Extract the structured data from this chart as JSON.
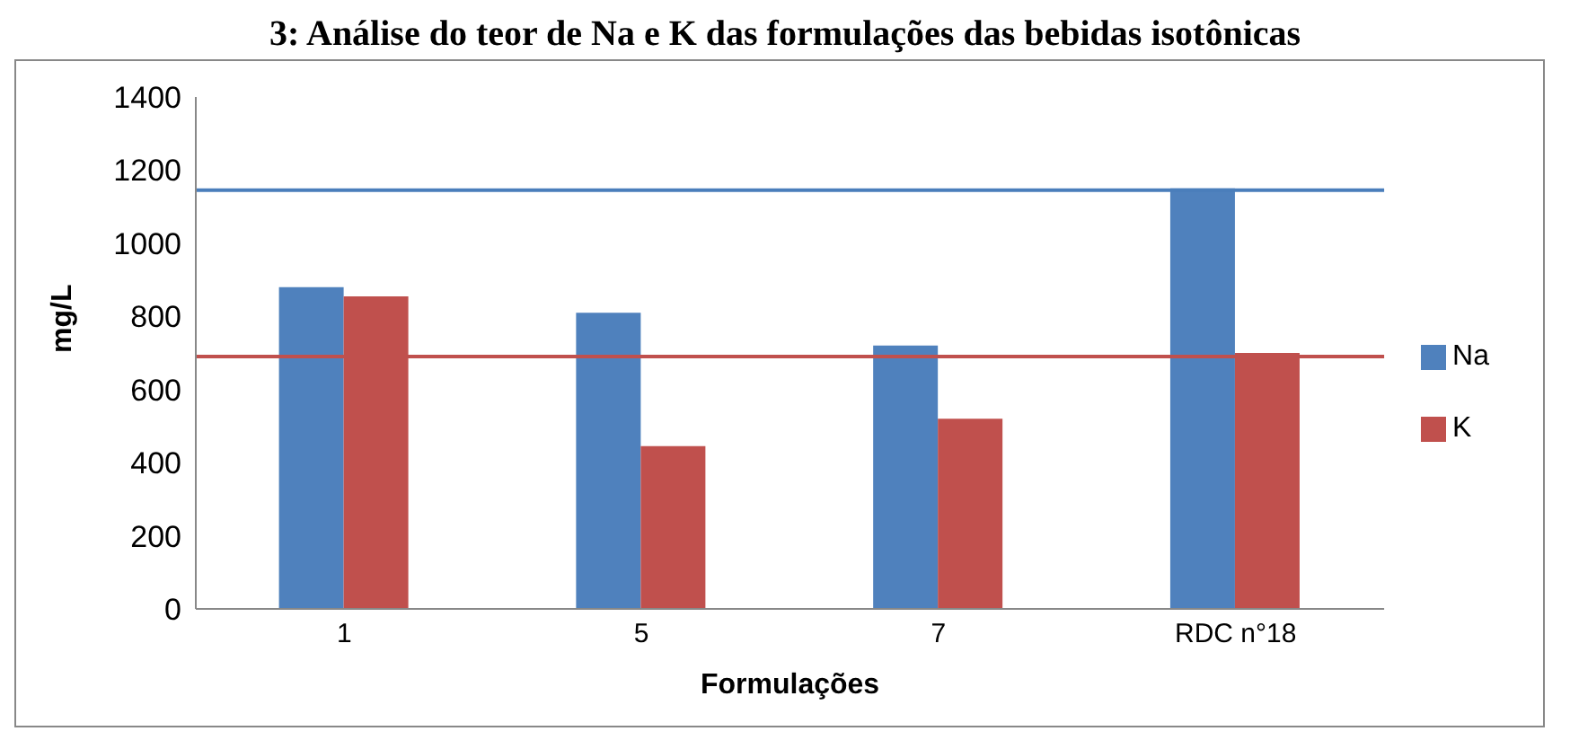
{
  "chart_data": {
    "type": "bar",
    "title": "3: Análise do teor de Na e K das formulações das bebidas isotônicas",
    "xlabel": "Formulações",
    "ylabel": "mg/L",
    "categories": [
      "1",
      "5",
      "7",
      "RDC n°18"
    ],
    "series": [
      {
        "name": "Na",
        "color": "#4f81bd",
        "values": [
          880,
          810,
          720,
          1150
        ]
      },
      {
        "name": "K",
        "color": "#c0504d",
        "values": [
          855,
          445,
          520,
          700
        ]
      }
    ],
    "ylim": [
      0,
      1400
    ],
    "yticks": [
      0,
      200,
      400,
      600,
      800,
      1000,
      1200,
      1400
    ],
    "grid": false,
    "legend": "right",
    "ref_lines": [
      {
        "axis": "y",
        "value": 1145,
        "color": "#4a7ebb"
      },
      {
        "axis": "y",
        "value": 690,
        "color": "#c0504d"
      }
    ]
  }
}
